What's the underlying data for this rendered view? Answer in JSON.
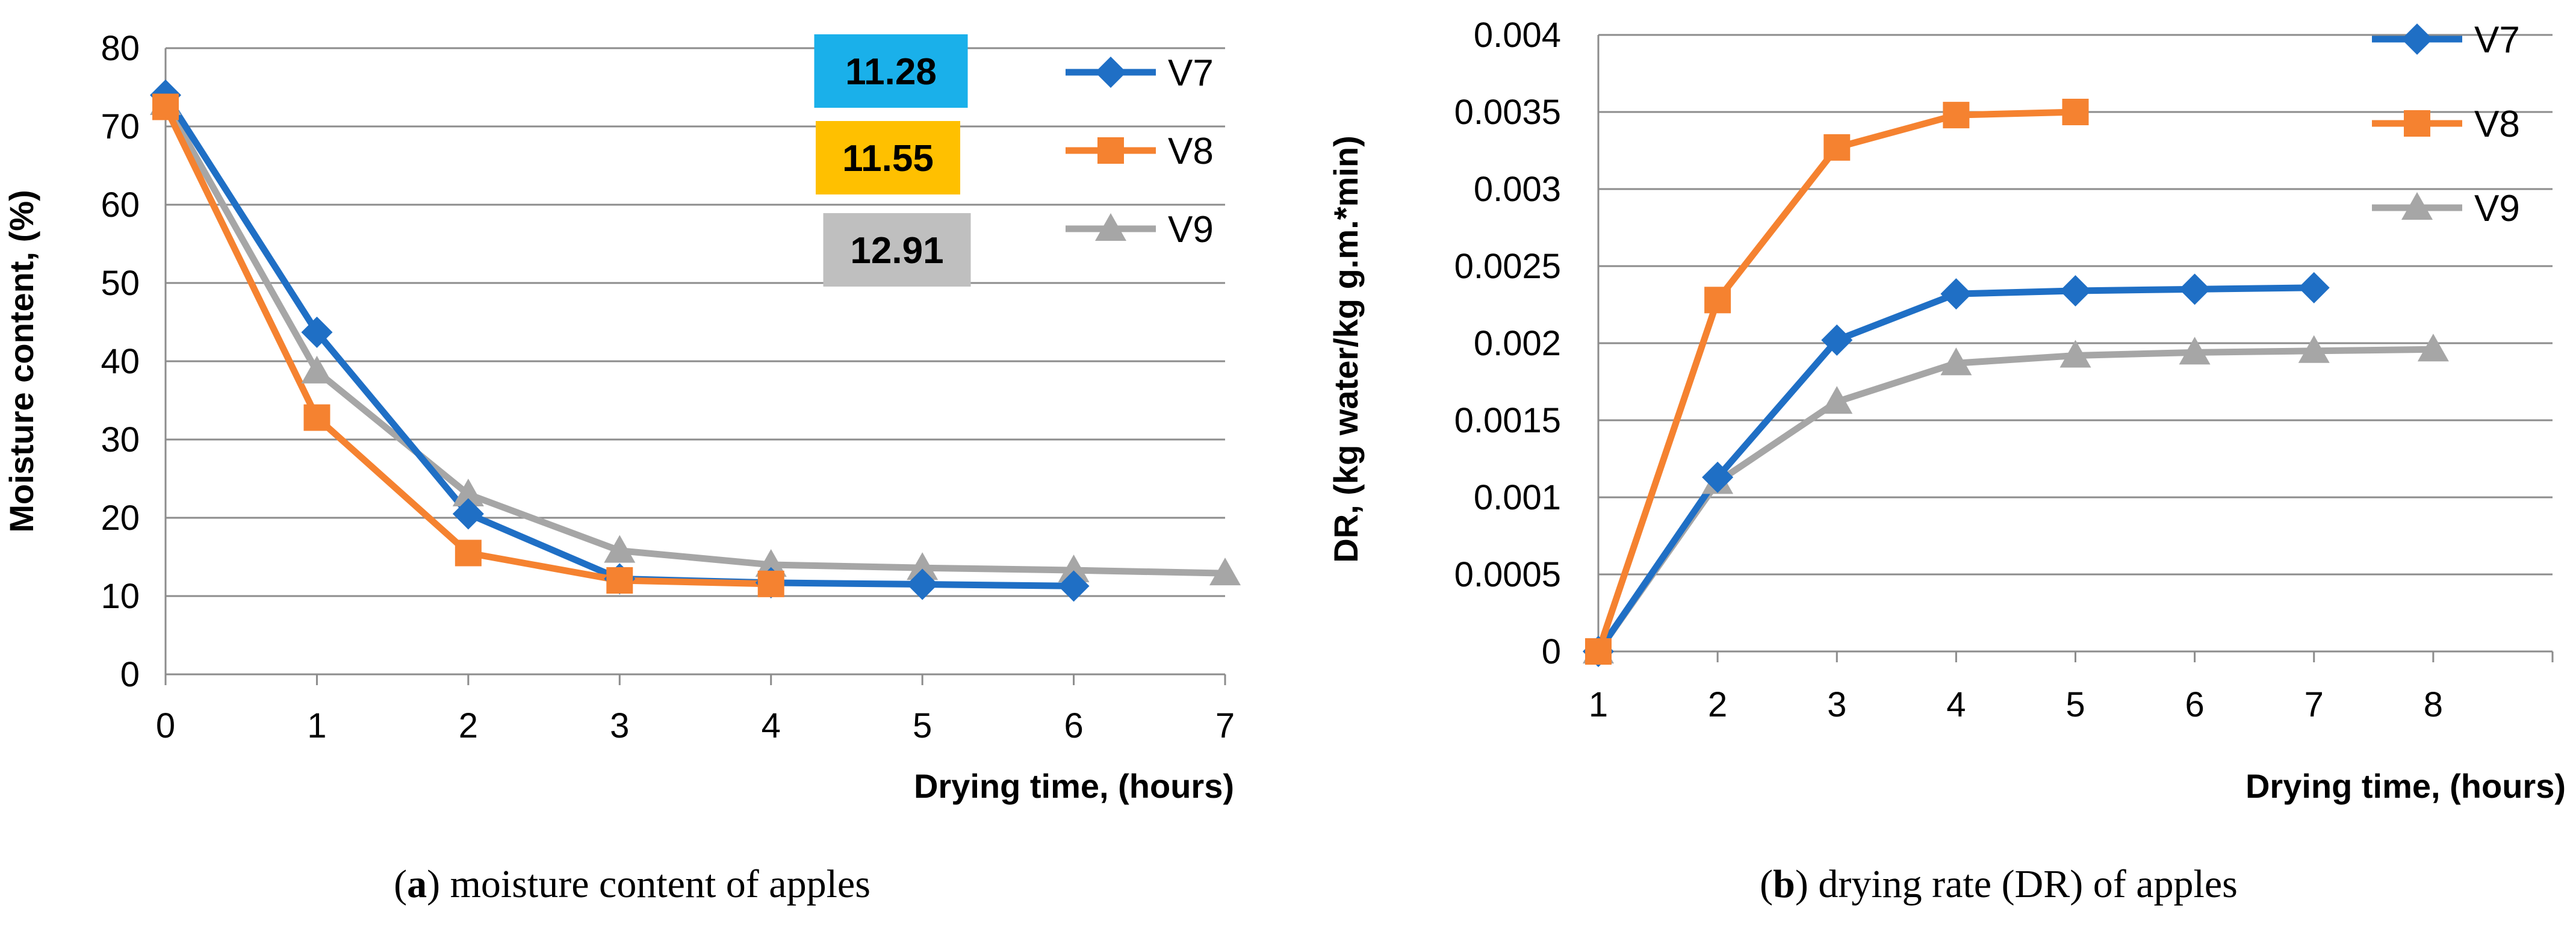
{
  "chart_data": [
    {
      "id": "a",
      "type": "line",
      "title": "",
      "xlabel": "Drying time, (hours)",
      "ylabel": "Moisture content, (%)",
      "xlim": [
        0,
        7
      ],
      "ylim": [
        0,
        80
      ],
      "xticks": [
        "0",
        "1",
        "2",
        "3",
        "4",
        "5",
        "6",
        "7"
      ],
      "yticks": [
        "0",
        "10",
        "20",
        "30",
        "40",
        "50",
        "60",
        "70",
        "80"
      ],
      "grid": true,
      "legend_position": "top-right",
      "series": [
        {
          "name": "V7",
          "color": "#1f6fc5",
          "marker": "diamond",
          "x": [
            0,
            1,
            2,
            3,
            4,
            5,
            6
          ],
          "y": [
            74,
            43.7,
            20.5,
            12.2,
            11.7,
            11.5,
            11.28
          ]
        },
        {
          "name": "V8",
          "color": "#f58230",
          "marker": "square",
          "x": [
            0,
            1,
            2,
            3,
            4
          ],
          "y": [
            72.5,
            32.8,
            15.5,
            12.0,
            11.55
          ]
        },
        {
          "name": "V9",
          "color": "#a6a6a6",
          "marker": "triangle",
          "x": [
            0,
            1,
            2,
            3,
            4,
            5,
            6,
            7
          ],
          "y": [
            73,
            38.7,
            23,
            15.8,
            14.0,
            13.6,
            13.3,
            12.91
          ]
        }
      ],
      "annotations": [
        {
          "text": "11.28",
          "color": "#1ab0ea"
        },
        {
          "text": "11.55",
          "color": "#ffc000"
        },
        {
          "text": "12.91",
          "color": "#bfbfbf"
        }
      ],
      "caption_label": "(a)",
      "caption_text": " moisture content of apples"
    },
    {
      "id": "b",
      "type": "line",
      "title": "",
      "xlabel": "Drying time, (hours)",
      "ylabel": "DR, (kg water/kg g.m.*min)",
      "xlim": [
        1,
        9
      ],
      "ylim": [
        0,
        0.004
      ],
      "xticks": [
        "1",
        "2",
        "3",
        "4",
        "5",
        "6",
        "7",
        "8"
      ],
      "yticks": [
        "0",
        "0.0005",
        "0.001",
        "0.0015",
        "0.002",
        "0.0025",
        "0.003",
        "0.0035",
        "0.004"
      ],
      "grid": true,
      "legend_position": "top-right",
      "series": [
        {
          "name": "V7",
          "color": "#1f6fc5",
          "marker": "diamond",
          "x": [
            1,
            2,
            3,
            4,
            5,
            6,
            7
          ],
          "y": [
            0,
            0.00113,
            0.00202,
            0.00232,
            0.00234,
            0.00235,
            0.00236
          ]
        },
        {
          "name": "V8",
          "color": "#f58230",
          "marker": "square",
          "x": [
            1,
            2,
            3,
            4,
            5
          ],
          "y": [
            0,
            0.00228,
            0.00327,
            0.00348,
            0.0035
          ]
        },
        {
          "name": "V9",
          "color": "#a6a6a6",
          "marker": "triangle",
          "x": [
            1,
            2,
            3,
            4,
            5,
            6,
            7,
            8
          ],
          "y": [
            0,
            0.0011,
            0.00162,
            0.00187,
            0.00192,
            0.00194,
            0.00195,
            0.00196
          ]
        }
      ],
      "annotations": [],
      "caption_label": "(b)",
      "caption_text": " drying rate (DR) of apples"
    }
  ]
}
